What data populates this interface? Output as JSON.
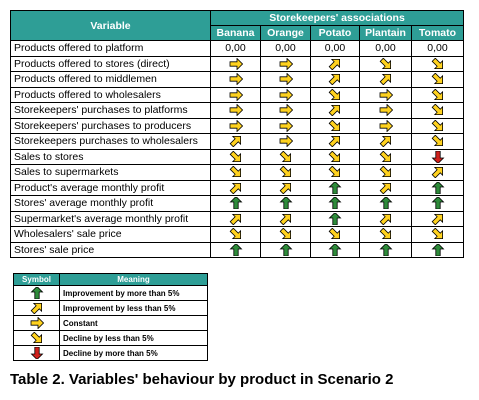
{
  "table": {
    "variable_header": "Variable",
    "group_header": "Storekeepers' associations",
    "products": [
      "Banana",
      "Orange",
      "Potato",
      "Plantain",
      "Tomato"
    ],
    "rows": [
      {
        "label": "Products offered to platform",
        "cells": [
          "0,00",
          "0,00",
          "0,00",
          "0,00",
          "0,00"
        ]
      },
      {
        "label": "Products offered to stores (direct)",
        "cells": [
          "constant",
          "constant",
          "improve_small",
          "decline_small",
          "decline_small"
        ]
      },
      {
        "label": "Products offered to middlemen",
        "cells": [
          "constant",
          "constant",
          "improve_small",
          "improve_small",
          "decline_small"
        ]
      },
      {
        "label": "Products offered  to wholesalers",
        "cells": [
          "constant",
          "constant",
          "decline_small",
          "constant",
          "decline_small"
        ]
      },
      {
        "label": "Storekeepers' purchases to platforms",
        "cells": [
          "constant",
          "constant",
          "improve_small",
          "constant",
          "decline_small"
        ]
      },
      {
        "label": "Storekeepers' purchases to producers",
        "cells": [
          "constant",
          "constant",
          "decline_small",
          "constant",
          "decline_small"
        ]
      },
      {
        "label": "Storekeepers purchases to wholesalers",
        "cells": [
          "improve_small",
          "constant",
          "improve_small",
          "improve_small",
          "decline_small"
        ]
      },
      {
        "label": "Sales to stores",
        "cells": [
          "decline_small",
          "decline_small",
          "decline_small",
          "decline_small",
          "decline_large"
        ]
      },
      {
        "label": "Sales to supermarkets",
        "cells": [
          "decline_small",
          "decline_small",
          "decline_small",
          "decline_small",
          "improve_small"
        ]
      },
      {
        "label": "Product's average monthly profit",
        "cells": [
          "improve_small",
          "improve_small",
          "improve_large",
          "improve_small",
          "improve_large"
        ]
      },
      {
        "label": "Stores' average monthly profit",
        "cells": [
          "improve_large",
          "improve_large",
          "improve_large",
          "improve_large",
          "improve_large"
        ]
      },
      {
        "label": "Supermarket's average monthly profit",
        "cells": [
          "improve_small",
          "improve_small",
          "improve_large",
          "improve_small",
          "improve_small"
        ]
      },
      {
        "label": "Wholesalers' sale price",
        "cells": [
          "decline_small",
          "decline_small",
          "decline_small",
          "decline_small",
          "decline_small"
        ]
      },
      {
        "label": "Stores' sale price",
        "cells": [
          "improve_large",
          "improve_large",
          "improve_large",
          "improve_large",
          "improve_large"
        ]
      }
    ]
  },
  "legend": {
    "symbol_header": "Symbol",
    "meaning_header": "Meaning",
    "items": [
      {
        "symbol": "improve_large",
        "meaning": "Improvement by more than 5%"
      },
      {
        "symbol": "improve_small",
        "meaning": "Improvement by less than 5%"
      },
      {
        "symbol": "constant",
        "meaning": "Constant"
      },
      {
        "symbol": "decline_small",
        "meaning": "Decline by less than 5%"
      },
      {
        "symbol": "decline_large",
        "meaning": "Decline by more than 5%"
      }
    ]
  },
  "caption": "Table 2. Variables' behaviour by product in Scenario 2",
  "colors": {
    "header": "#2e9e96",
    "arrow_green": "#2e8b3a",
    "arrow_yellow": "#ffd21f",
    "arrow_red": "#d0211c"
  }
}
